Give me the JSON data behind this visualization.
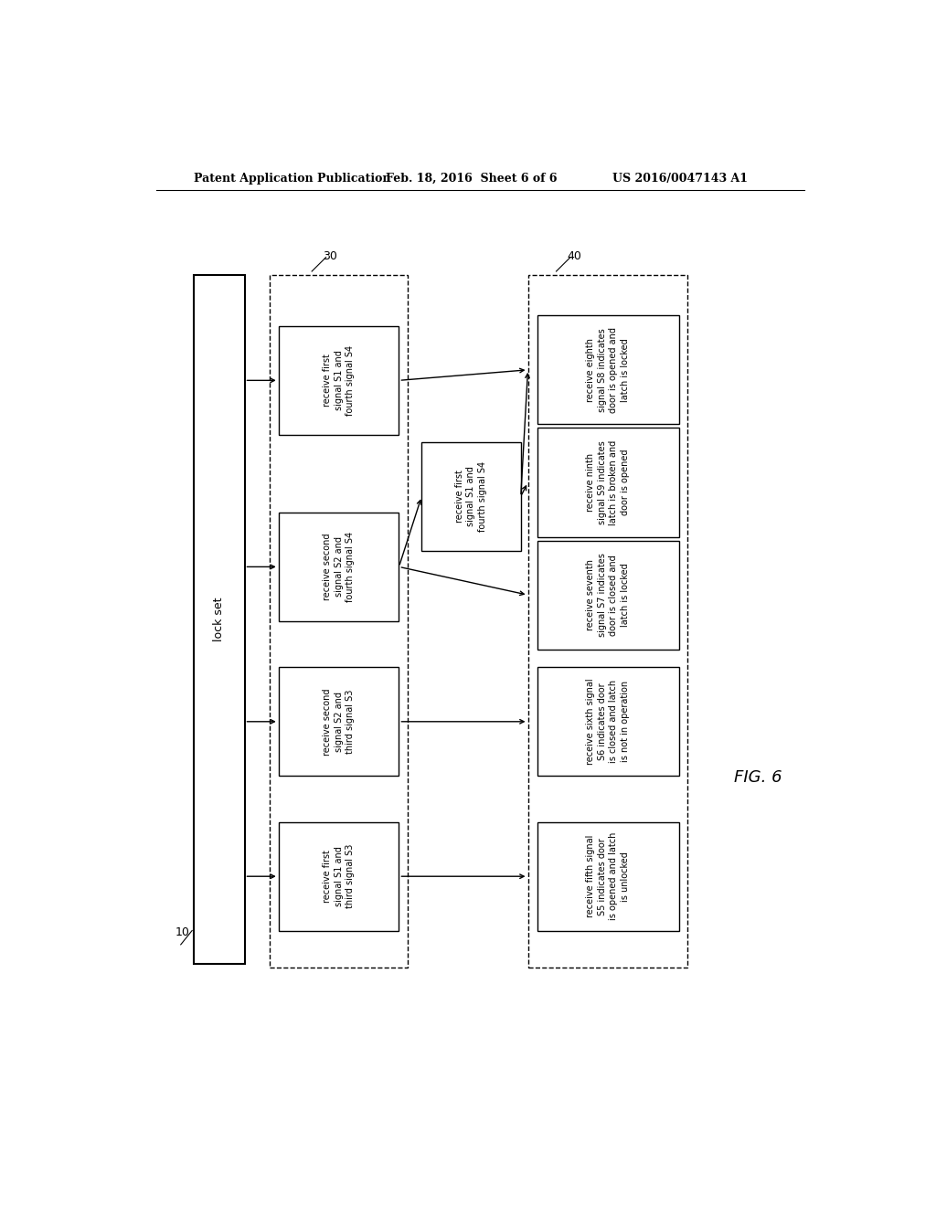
{
  "header_left": "Patent Application Publication",
  "header_mid": "Feb. 18, 2016  Sheet 6 of 6",
  "header_right": "US 2016/0047143 A1",
  "fig_label": "FIG. 6",
  "lockset_label": "lock set",
  "label_10": "10",
  "label_30": "30",
  "label_40": "40",
  "col1_boxes": [
    {
      "text": "receive first\nsignal S1 and\nthird signal S3",
      "row": 0
    },
    {
      "text": "receive second\nsignal S2 and\nthird signal S3",
      "row": 1
    },
    {
      "text": "receive second\nsignal S2 and\nfourth signal S4",
      "row": 2
    },
    {
      "text": "receive first\nsignal S1 and\nfourth signal S4",
      "row": 3
    }
  ],
  "col2_boxes": [
    {
      "text": "receive first\nsignal S1 and\nfourth signal S4",
      "row": 2
    }
  ],
  "col3_boxes": [
    {
      "text": "receive fifth signal\nS5 indicates door\nis opened and latch\nis unlocked",
      "row": 0
    },
    {
      "text": "receive sixth signal\nS6 indicates door\nis closed and latch\nis not in operation",
      "row": 1
    },
    {
      "text": "receive seventh\nsignal S7 indicates\ndoor is closed and\nlatch is locked",
      "row": 2
    },
    {
      "text": "receive ninth\nsignal S9 indicates\nlatch is broken and\ndoor is opened",
      "row": 3
    },
    {
      "text": "receive eighth\nsignal S8 indicates\ndoor is opened and\nlatch is locked",
      "row": 4
    }
  ],
  "bg_color": "#ffffff",
  "text_color": "#000000",
  "font_size_box": 7.0,
  "font_size_header": 9,
  "font_size_label": 9,
  "font_size_fig": 13
}
